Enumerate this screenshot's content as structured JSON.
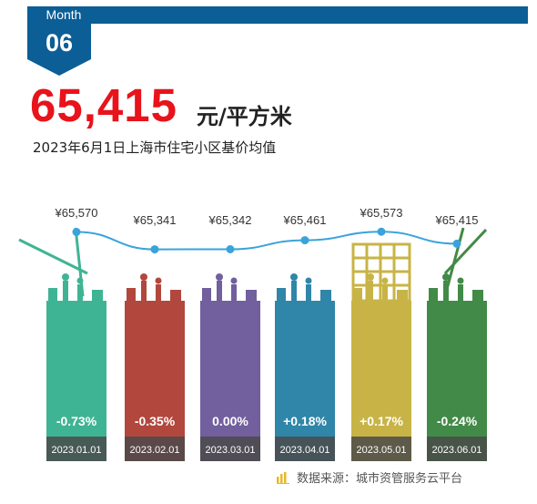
{
  "header": {
    "month_label": "Month",
    "month_number": "06",
    "value": "65,415",
    "unit": "元/平方米",
    "subtitle": "2023年6月1日上海市住宅小区基价均值"
  },
  "chart_data": {
    "type": "bar",
    "categories": [
      "2023.01.01",
      "2023.02.01",
      "2023.03.01",
      "2023.04.01",
      "2023.05.01",
      "2023.06.01"
    ],
    "line_values": [
      65570,
      65341,
      65342,
      65461,
      65573,
      65415
    ],
    "price_labels": [
      "¥65,570",
      "¥65,341",
      "¥65,342",
      "¥65,461",
      "¥65,573",
      "¥65,415"
    ],
    "changes": [
      "-0.73%",
      "-0.35%",
      "0.00%",
      "+0.18%",
      "+0.17%",
      "-0.24%"
    ],
    "colors": [
      "#3fb494",
      "#b2473d",
      "#715f9e",
      "#2f86a8",
      "#c8b446",
      "#428a47"
    ],
    "line_color": "#3aa3dc"
  },
  "footer": {
    "source": "数据来源：城市资管服务云平台"
  },
  "icons": {
    "source": "bar-chart-icon",
    "decoration": "construction-worker-icon"
  }
}
